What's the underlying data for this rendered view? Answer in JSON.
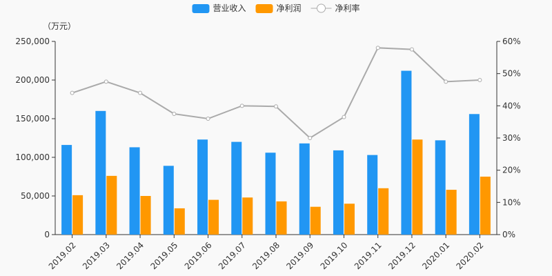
{
  "chart_data": {
    "type": "bar",
    "categories": [
      "2019.02",
      "2019.03",
      "2019.04",
      "2019.05",
      "2019.06",
      "2019.07",
      "2019.08",
      "2019.09",
      "2019.10",
      "2019.11",
      "2019.12",
      "2020.01",
      "2020.02"
    ],
    "series": [
      {
        "name": "营业收入",
        "type": "bar",
        "axis": "left",
        "color": "#2196f3",
        "values": [
          116000,
          160000,
          113000,
          89000,
          123000,
          120000,
          106000,
          118000,
          109000,
          103000,
          212000,
          122000,
          156000
        ]
      },
      {
        "name": "净利润",
        "type": "bar",
        "axis": "left",
        "color": "#ff9800",
        "values": [
          51000,
          76000,
          50000,
          34000,
          45000,
          48000,
          43000,
          36000,
          40000,
          60000,
          123000,
          58000,
          75000
        ]
      },
      {
        "name": "净利率",
        "type": "line",
        "axis": "right",
        "color": "#aaaaaa",
        "values": [
          44,
          47.5,
          44,
          37.5,
          36,
          40,
          39.8,
          30,
          36.5,
          58,
          57.5,
          47.5,
          48
        ]
      }
    ],
    "left_axis": {
      "unit_label": "（万元）",
      "min": 0,
      "max": 250000,
      "ticks": [
        "0",
        "50,000",
        "100,000",
        "150,000",
        "200,000",
        "250,000"
      ]
    },
    "right_axis": {
      "min": 0,
      "max": 60,
      "ticks": [
        "0%",
        "10%",
        "20%",
        "30%",
        "40%",
        "50%",
        "60%"
      ]
    },
    "legend_position": "top-center",
    "grid": false
  }
}
